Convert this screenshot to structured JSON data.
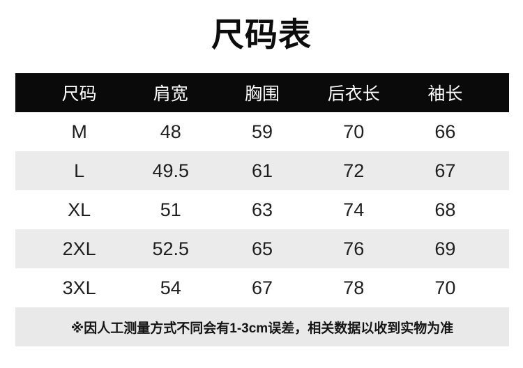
{
  "title": "尺码表",
  "chart_data": {
    "type": "table",
    "title": "尺码表",
    "columns": [
      "尺码",
      "肩宽",
      "胸围",
      "后衣长",
      "袖长"
    ],
    "rows": [
      [
        "M",
        "48",
        "59",
        "70",
        "66"
      ],
      [
        "L",
        "49.5",
        "61",
        "72",
        "67"
      ],
      [
        "XL",
        "51",
        "63",
        "74",
        "68"
      ],
      [
        "2XL",
        "52.5",
        "65",
        "76",
        "69"
      ],
      [
        "3XL",
        "54",
        "67",
        "78",
        "70"
      ]
    ],
    "unit_note": "cm",
    "footnote": "※因人工测量方式不同会有1-3cm误差，相关数据以收到实物为准",
    "layout": {
      "header_style": "black-bar",
      "row_striping": "white-gray"
    }
  },
  "colors": {
    "header_bg": "#0a0a0a",
    "header_text": "#ffffff",
    "row_alt_bg": "#ebebeb",
    "footnote_bg": "#e9e9e9",
    "body_text": "#1e1e1e",
    "title_text": "#0c0c0c"
  }
}
